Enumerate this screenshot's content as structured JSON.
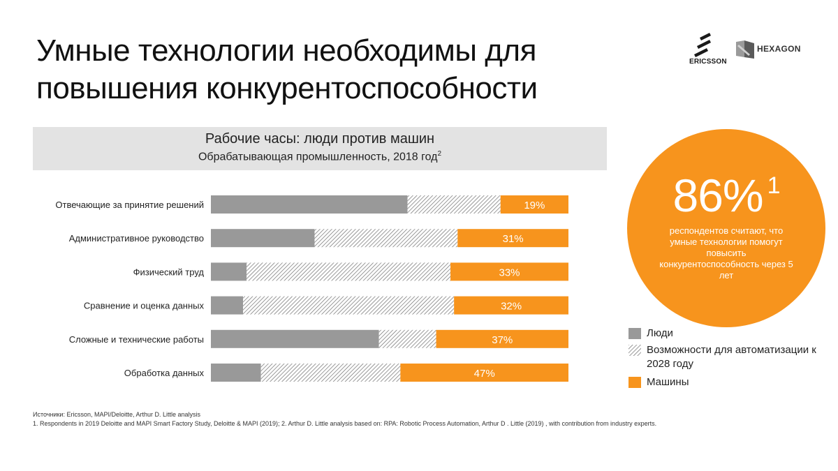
{
  "title": {
    "line1": "Умные технологии необходимы для",
    "line2": "повышения конкурентоспособности"
  },
  "logos": {
    "ericsson": "ERICSSON",
    "hexagon": "HEXAGON"
  },
  "colors": {
    "people": "#999999",
    "automation_stroke": "#6f6f6f",
    "machines": "#f7941d",
    "header_bg": "#e3e3e3"
  },
  "chart_data": {
    "type": "bar",
    "orientation": "horizontal",
    "stacked": true,
    "title": "Рабочие часы: люди против машин",
    "subtitle": "Обрабатывающая промышленность,  2018 год",
    "subtitle_note": "2",
    "categories": [
      "Отвечающие за принятие решений",
      "Административное руководство",
      "Физический труд",
      "Сравнение и оценка данных",
      "Сложные и технические работы",
      "Обработка данных"
    ],
    "series": [
      {
        "name": "Люди",
        "values": [
          55,
          29,
          10,
          9,
          47,
          14
        ]
      },
      {
        "name": "Возможности для автоматизации к 2028 году",
        "values": [
          26,
          40,
          57,
          59,
          16,
          39
        ]
      },
      {
        "name": "Машины",
        "values": [
          19,
          31,
          33,
          32,
          37,
          47
        ]
      }
    ],
    "data_labels": [
      "19%",
      "31%",
      "33%",
      "32%",
      "37%",
      "47%"
    ],
    "xlim": [
      0,
      100
    ],
    "grid": false,
    "legend_position": "right"
  },
  "highlight": {
    "value": "86%",
    "note": "1",
    "text": "респондентов считают, что умные технологии помогут повысить конкурентоспособность через 5 лет"
  },
  "legend": {
    "people": "Люди",
    "automation": "Возможности для автоматизации к 2028 году",
    "machines": "Машины"
  },
  "sources": {
    "line1": "Источники: Ericsson, MAPI/Deloitte, Arthur D. Little analysis",
    "line2": "1. Respondents in 2019 Deloitte and MAPI Smart Factory Study, Deloitte & MAPI (2019); 2. Arthur D. Little analysis based on: RPA: Robotic Process Automation, Arthur D . Little (2019) , with contribution from industry experts."
  }
}
